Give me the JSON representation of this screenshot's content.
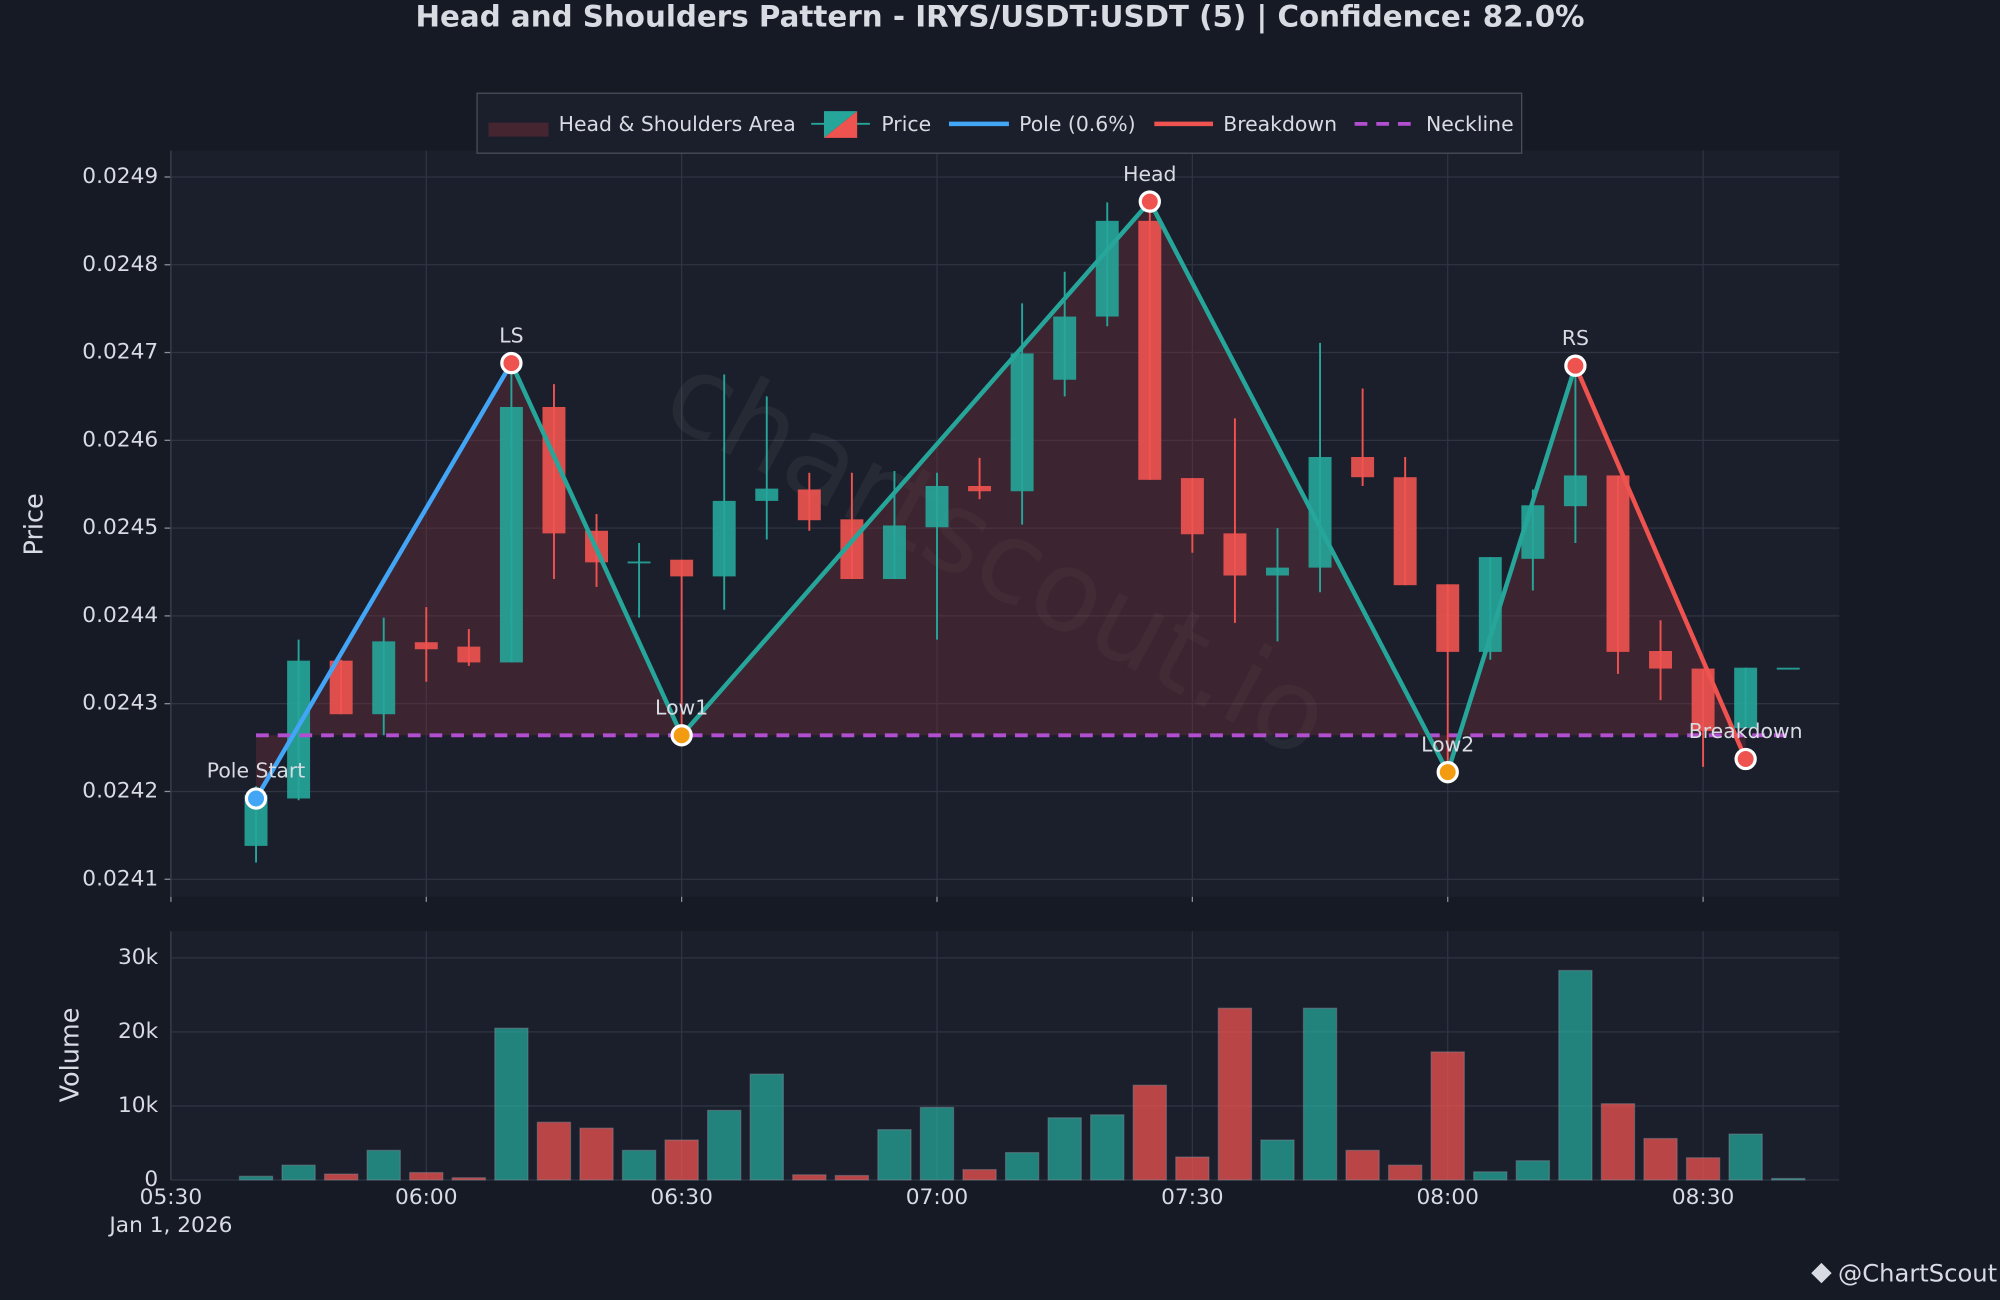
{
  "chart_data": [
    {
      "type": "candlestick",
      "title": "Head and Shoulders Pattern - IRYS/USDT:USDT (5) | Confidence: 82.0%",
      "ylabel": "Price",
      "x": [
        "05:40",
        "05:45",
        "05:50",
        "05:55",
        "06:00",
        "06:05",
        "06:10",
        "06:15",
        "06:20",
        "06:25",
        "06:30",
        "06:35",
        "06:40",
        "06:45",
        "06:50",
        "06:55",
        "07:00",
        "07:05",
        "07:10",
        "07:15",
        "07:20",
        "07:25",
        "07:30",
        "07:35",
        "07:40",
        "07:45",
        "07:50",
        "07:55",
        "08:00",
        "08:05",
        "08:10",
        "08:15",
        "08:20",
        "08:25",
        "08:30",
        "08:35",
        "08:40"
      ],
      "open": [
        0.024138,
        0.024192,
        0.024349,
        0.024288,
        0.02437,
        0.024365,
        0.024347,
        0.024638,
        0.024497,
        0.024462,
        0.024464,
        0.024445,
        0.024531,
        0.024544,
        0.02451,
        0.024442,
        0.024501,
        0.024548,
        0.024542,
        0.024669,
        0.024741,
        0.02485,
        0.024557,
        0.024494,
        0.024446,
        0.024455,
        0.024581,
        0.024558,
        0.024436,
        0.024359,
        0.024465,
        0.024525,
        0.02456,
        0.02436,
        0.02434,
        0.024272,
        0.024341
      ],
      "high": [
        0.024206,
        0.024373,
        0.02435,
        0.024398,
        0.02441,
        0.024385,
        0.02469,
        0.024664,
        0.024516,
        0.024483,
        0.024464,
        0.024675,
        0.02465,
        0.024563,
        0.024563,
        0.024565,
        0.024563,
        0.02458,
        0.024756,
        0.024792,
        0.024871,
        0.024872,
        0.024557,
        0.024625,
        0.0245,
        0.024711,
        0.024659,
        0.024581,
        0.024436,
        0.024467,
        0.024544,
        0.024685,
        0.02456,
        0.024395,
        0.02434,
        0.024341,
        0.024341
      ],
      "low": [
        0.024119,
        0.02419,
        0.024288,
        0.024264,
        0.024325,
        0.024343,
        0.024347,
        0.024442,
        0.024433,
        0.024398,
        0.024264,
        0.024407,
        0.024487,
        0.024497,
        0.024442,
        0.024442,
        0.024373,
        0.024533,
        0.024504,
        0.02465,
        0.02473,
        0.024555,
        0.024472,
        0.024392,
        0.024371,
        0.024427,
        0.024548,
        0.024435,
        0.024222,
        0.02435,
        0.024429,
        0.024483,
        0.024334,
        0.024304,
        0.024228,
        0.024272,
        0.024341
      ],
      "close": [
        0.024196,
        0.024349,
        0.024288,
        0.024371,
        0.024362,
        0.024347,
        0.024638,
        0.024494,
        0.024461,
        0.024462,
        0.024445,
        0.024531,
        0.024545,
        0.024509,
        0.024442,
        0.024503,
        0.024548,
        0.024542,
        0.024699,
        0.024741,
        0.02485,
        0.024555,
        0.024493,
        0.024446,
        0.024455,
        0.024581,
        0.024558,
        0.024435,
        0.024359,
        0.024467,
        0.024526,
        0.02456,
        0.024359,
        0.02434,
        0.024269,
        0.024341,
        0.024341
      ],
      "up_color": "#26a69a",
      "down_color": "#ef5350",
      "price_legend": "Price",
      "xlim": [
        "05:30",
        "08:46"
      ],
      "xticks": [
        "05:30",
        "06:00",
        "06:30",
        "07:00",
        "07:30",
        "08:00",
        "08:30"
      ],
      "x_date_label": "Jan 1, 2026",
      "ylim": [
        0.02408,
        0.02493
      ],
      "yticks": [
        0.0241,
        0.0242,
        0.0243,
        0.0244,
        0.0245,
        0.0246,
        0.0247,
        0.0248,
        0.0249
      ],
      "grid": true,
      "area": {
        "name": "Head & Shoulders Area",
        "color": "#7a2e38"
      },
      "neckline": {
        "name": "Neckline",
        "value": 0.024264,
        "color": "#b24fd0",
        "x": [
          "05:40",
          "08:40"
        ]
      },
      "series": [
        {
          "name": "Pole (0.6%)",
          "color": "#42a5f5",
          "x": [
            "05:40",
            "06:10"
          ],
          "y": [
            0.024192,
            0.024688
          ]
        },
        {
          "color": "#26a69a",
          "x": [
            "06:10",
            "06:30",
            "07:25",
            "08:00",
            "08:15"
          ],
          "y": [
            0.024688,
            0.024264,
            0.024872,
            0.024222,
            0.024685
          ]
        },
        {
          "name": "Breakdown",
          "color": "#ef5350",
          "x": [
            "08:15",
            "08:35"
          ],
          "y": [
            0.024685,
            0.024237
          ]
        }
      ],
      "annotations": [
        {
          "text": "Pole Start",
          "x": "05:40",
          "y": 0.024192,
          "color": "#42a5f5"
        },
        {
          "text": "LS",
          "x": "06:10",
          "y": 0.024688,
          "color": "#ef5350"
        },
        {
          "text": "Low1",
          "x": "06:30",
          "y": 0.024264,
          "color": "#f39c12"
        },
        {
          "text": "Head",
          "x": "07:25",
          "y": 0.024872,
          "color": "#ef5350"
        },
        {
          "text": "Low2",
          "x": "08:00",
          "y": 0.024222,
          "color": "#f39c12"
        },
        {
          "text": "RS",
          "x": "08:15",
          "y": 0.024685,
          "color": "#ef5350"
        },
        {
          "text": "Breakdown",
          "x": "08:35",
          "y": 0.024237,
          "color": "#ef5350"
        }
      ]
    },
    {
      "type": "bar",
      "ylabel": "Volume",
      "values": [
        500,
        2000,
        800,
        4000,
        1000,
        300,
        20500,
        7800,
        7000,
        4000,
        5400,
        9400,
        14300,
        700,
        600,
        6800,
        9800,
        1400,
        3700,
        8400,
        8800,
        12800,
        3100,
        23200,
        5400,
        23200,
        4000,
        2000,
        17300,
        1100,
        2600,
        28300,
        10300,
        5600,
        3000,
        6200,
        200
      ],
      "ylim": [
        0,
        33600
      ],
      "yticks": [
        0,
        {
          "value": 10000,
          "label": "10k"
        },
        {
          "value": 20000,
          "label": "20k"
        },
        {
          "value": 30000,
          "label": "30k"
        }
      ],
      "grid": true
    }
  ],
  "watermark": "chartscout.io",
  "footer": "@ChartScout"
}
